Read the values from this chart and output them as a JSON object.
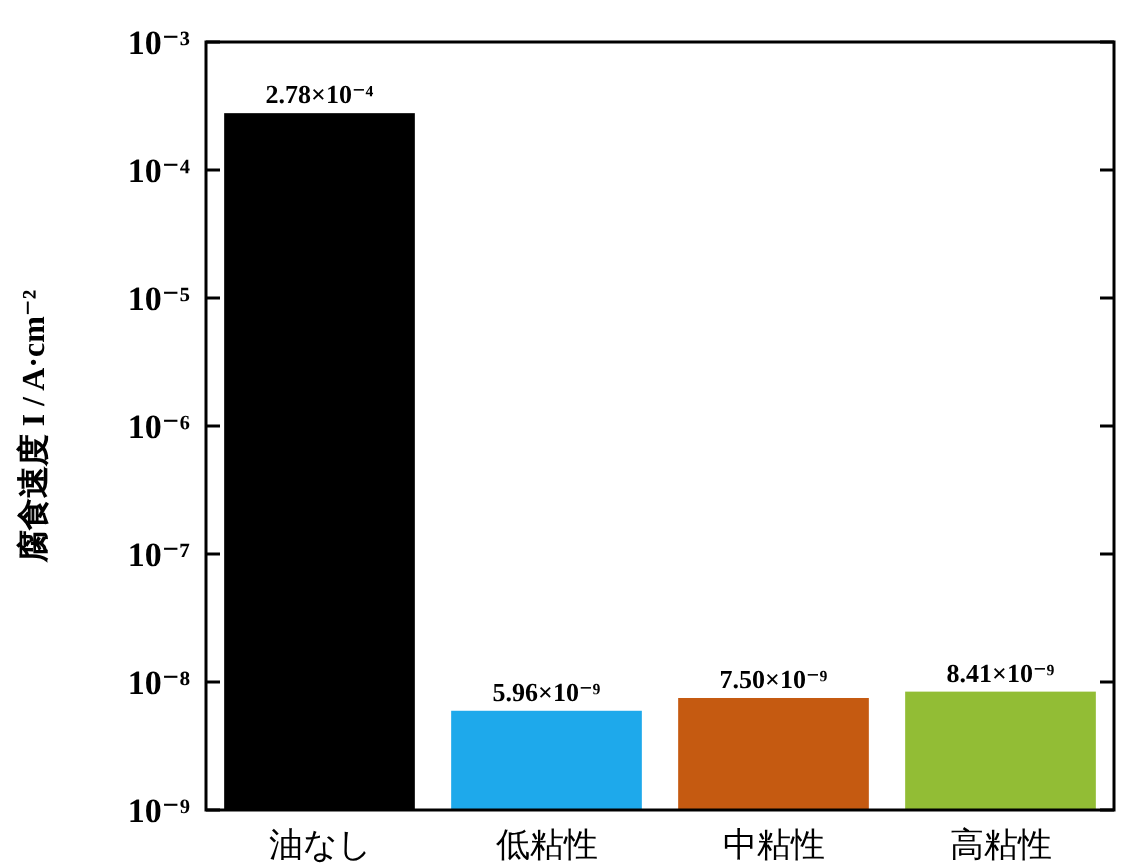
{
  "chart_data": {
    "type": "bar",
    "ylabel": "腐食速度 I / A·cm⁻²",
    "categories": [
      "油なし",
      "低粘性",
      "中粘性",
      "高粘性"
    ],
    "values": [
      0.000278,
      5.96e-09,
      7.5e-09,
      8.41e-09
    ],
    "colors": [
      "#000000",
      "#1ea9eb",
      "#c55a11",
      "#92bd35"
    ],
    "value_labels": [
      "2.78×10⁻⁴",
      "5.96×10⁻⁹",
      "7.50×10⁻⁹",
      "8.41×10⁻⁹"
    ],
    "log": "y",
    "ylim": [
      1e-09,
      0.001
    ],
    "yticks": [
      {
        "value": 1e-09,
        "label": "10⁻⁹"
      },
      {
        "value": 1e-08,
        "label": "10⁻⁸"
      },
      {
        "value": 1e-07,
        "label": "10⁻⁷"
      },
      {
        "value": 1e-06,
        "label": "10⁻⁶"
      },
      {
        "value": 1e-05,
        "label": "10⁻⁵"
      },
      {
        "value": 0.0001,
        "label": "10⁻⁴"
      },
      {
        "value": 0.001,
        "label": "10⁻³"
      }
    ]
  }
}
